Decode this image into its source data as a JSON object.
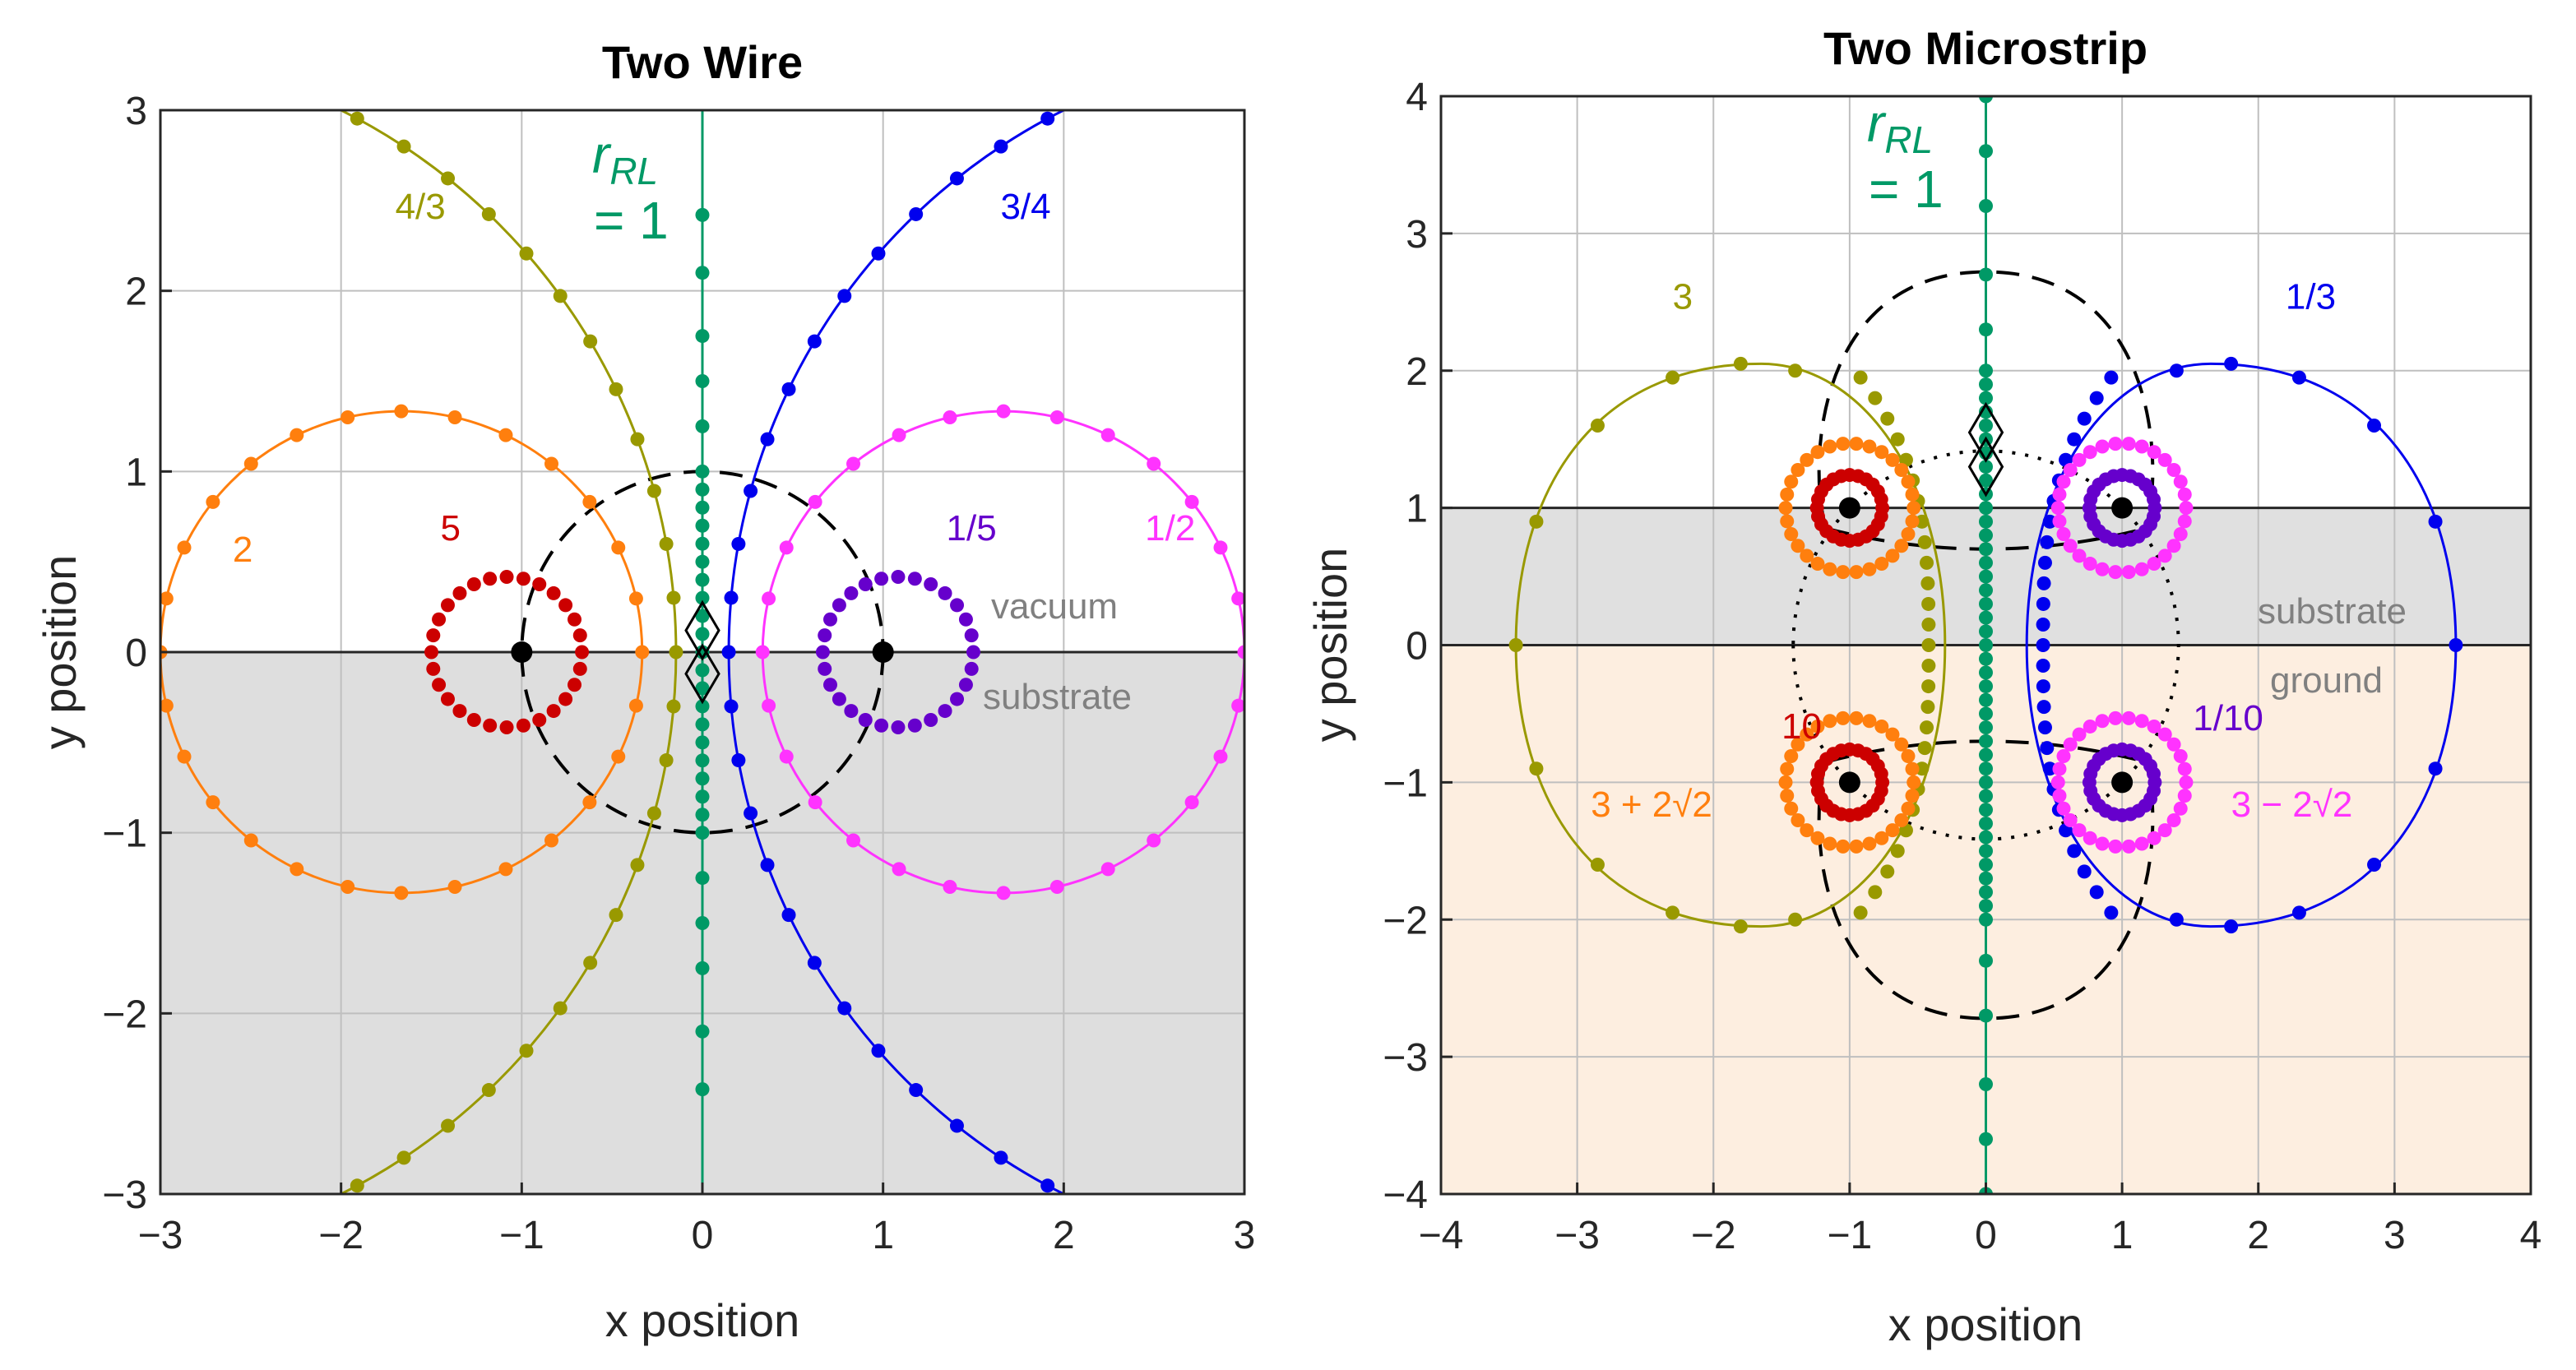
{
  "chart_data": [
    {
      "type": "scatter",
      "title": "Two Wire",
      "xlabel": "x position",
      "ylabel": "y position",
      "xlim": [
        -3,
        3
      ],
      "ylim": [
        -3,
        3
      ],
      "xticks": [
        "−3",
        "−2",
        "−1",
        "0",
        "1",
        "2",
        "3"
      ],
      "yticks": [
        "−3",
        "−2",
        "−1",
        "0",
        "1",
        "2",
        "3"
      ],
      "grid": true,
      "region_labels": {
        "upper": "vacuum",
        "lower": "substrate"
      },
      "region_colors": {
        "upper": "#ffffff",
        "lower": "#dedede"
      },
      "rrl_label": {
        "symbol": "r",
        "subscript": "RL",
        "equals": "= 1"
      },
      "conductors": [
        [
          -1,
          0
        ],
        [
          1,
          0
        ]
      ],
      "reference_circle": {
        "center": [
          0,
          0
        ],
        "radius": 1,
        "style": "dashed"
      },
      "series": [
        {
          "name": "r_RL = 5",
          "label": "5",
          "color": "#cc0000",
          "kind": "circle",
          "center": [
            -1.0833,
            0
          ],
          "radius": 0.4167,
          "points": 28,
          "curve": false,
          "label_at": [
            -1.45,
            0.62
          ]
        },
        {
          "name": "r_RL = 2",
          "label": "2",
          "color": "#ff7f0e",
          "kind": "circle",
          "center": [
            -1.6667,
            0
          ],
          "radius": 1.3333,
          "points": 28,
          "curve": true,
          "label_at": [
            -2.6,
            0.5
          ]
        },
        {
          "name": "r_RL = 4/3",
          "label": "4/3",
          "color": "#999900",
          "kind": "circle",
          "center": [
            -3.5,
            0
          ],
          "radius": 3.3541,
          "points": 70,
          "curve": true,
          "label_at": [
            -1.7,
            2.4
          ]
        },
        {
          "name": "r_RL = 1",
          "label": "",
          "color": "#009966",
          "kind": "line",
          "x": 0,
          "points": 28,
          "curve": true
        },
        {
          "name": "r_RL = 3/4",
          "label": "3/4",
          "color": "#0000ee",
          "kind": "circle",
          "center": [
            3.5,
            0
          ],
          "radius": 3.3541,
          "points": 70,
          "curve": true,
          "label_at": [
            1.65,
            2.4
          ]
        },
        {
          "name": "r_RL = 1/2",
          "label": "1/2",
          "color": "#ff33ff",
          "kind": "circle",
          "center": [
            1.6667,
            0
          ],
          "radius": 1.3333,
          "points": 28,
          "curve": true,
          "label_at": [
            2.45,
            0.62
          ]
        },
        {
          "name": "r_RL = 1/5",
          "label": "1/5",
          "color": "#6600cc",
          "kind": "circle",
          "center": [
            1.0833,
            0
          ],
          "radius": 0.4167,
          "points": 28,
          "curve": false,
          "label_at": [
            1.35,
            0.62
          ]
        }
      ]
    },
    {
      "type": "scatter",
      "title": "Two Microstrip",
      "xlabel": "x position",
      "ylabel": "y position",
      "xlim": [
        -4,
        4
      ],
      "ylim": [
        -4,
        4
      ],
      "xticks": [
        "−4",
        "−3",
        "−2",
        "−1",
        "0",
        "1",
        "2",
        "3",
        "4"
      ],
      "yticks": [
        "−4",
        "−3",
        "−2",
        "−1",
        "0",
        "1",
        "2",
        "3",
        "4"
      ],
      "grid": true,
      "region_labels": {
        "upper": "substrate",
        "lower": "ground"
      },
      "region_colors": {
        "top": "#ffffff",
        "substrate": "#e0e0e0",
        "ground": "#fdeee0"
      },
      "rrl_label": {
        "symbol": "r",
        "subscript": "RL",
        "equals": "= 1"
      },
      "conductors": [
        [
          -1,
          1
        ],
        [
          1,
          1
        ],
        [
          -1,
          -1
        ],
        [
          1,
          -1
        ]
      ],
      "reference_circles": [
        {
          "center": [
            0,
            0
          ],
          "radius": 1.4142,
          "style": "dotted"
        }
      ],
      "series": [
        {
          "name": "r_RL = 10",
          "label": "10",
          "color": "#cc0000",
          "label_at": [
            -1.5,
            -0.68
          ]
        },
        {
          "name": "r_RL = 3 + 2√2",
          "label": "3 + 2√2",
          "color": "#ff7f0e",
          "label_at": [
            -2.9,
            -1.25
          ]
        },
        {
          "name": "r_RL = 3",
          "label": "3",
          "color": "#999900",
          "label_at": [
            -2.3,
            2.45
          ]
        },
        {
          "name": "r_RL = 1",
          "label": "",
          "color": "#009966"
        },
        {
          "name": "r_RL = 1/3",
          "label": "1/3",
          "color": "#0000ee",
          "label_at": [
            2.2,
            2.45
          ]
        },
        {
          "name": "r_RL = 3 − 2√2",
          "label": "3 − 2√2",
          "color": "#ff33ff",
          "label_at": [
            1.8,
            -1.25
          ]
        },
        {
          "name": "r_RL = 1/10",
          "label": "1/10",
          "color": "#6600cc",
          "label_at": [
            1.52,
            -0.62
          ]
        }
      ]
    }
  ]
}
